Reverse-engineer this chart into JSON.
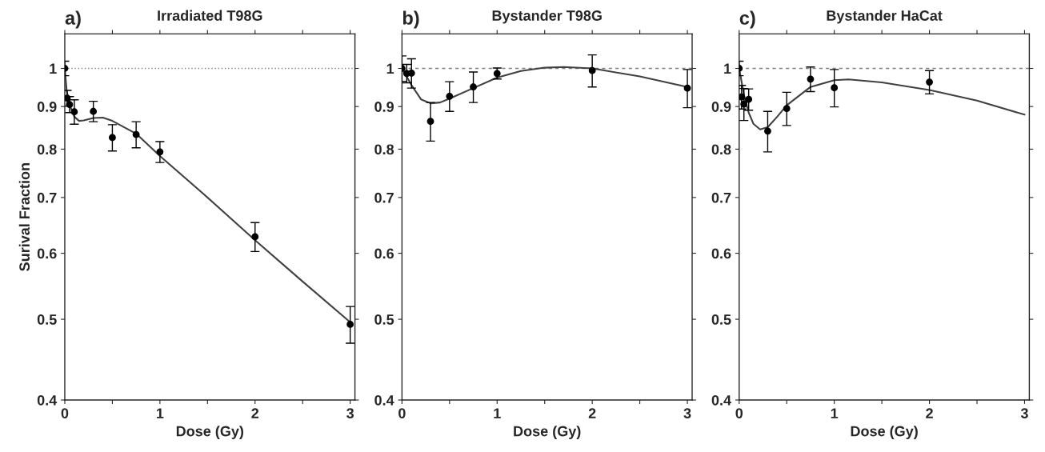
{
  "chart_data": [
    {
      "type": "scatter",
      "title": "Irradiated T98G",
      "annotations": [
        "a)"
      ],
      "xlabel": "Dose (Gy)",
      "ylabel": "Surival Fraction",
      "log": "y",
      "grid": false,
      "xlim": [
        0,
        3.05
      ],
      "ylim": [
        0.4,
        1.1
      ],
      "xticks": [
        0,
        {
          "value": 0.5,
          "label": null
        },
        1,
        {
          "value": 1.5,
          "label": null
        },
        2,
        {
          "value": 2.5,
          "label": null
        },
        3
      ],
      "yticks": [
        0.4,
        0.5,
        0.6,
        0.7,
        0.8,
        0.9,
        1
      ],
      "ref_lines": [
        {
          "axis": "y",
          "value": 1,
          "label": null,
          "color": "#808080",
          "line_style": "dotted"
        }
      ],
      "series": [
        {
          "marker": "circle",
          "color": "#000000",
          "x": [
            0,
            0.025,
            0.05,
            0.1,
            0.3,
            0.5,
            0.75,
            1,
            2,
            3
          ],
          "values": [
            1.0,
            0.921,
            0.905,
            0.887,
            0.888,
            0.826,
            0.833,
            0.794,
            0.628,
            0.493
          ],
          "errors": [
            0.02,
            0.02,
            0.02,
            0.03,
            0.025,
            0.03,
            0.03,
            0.023,
            0.025,
            0.025
          ]
        },
        {
          "type": "line",
          "marker": "none",
          "color": "#404040",
          "x": [
            0,
            0.02,
            0.05,
            0.1,
            0.15,
            0.2,
            0.3,
            0.4,
            0.5,
            0.75,
            1,
            1.5,
            2,
            2.5,
            3
          ],
          "values": [
            1.0,
            0.94,
            0.905,
            0.875,
            0.865,
            0.866,
            0.872,
            0.873,
            0.865,
            0.835,
            0.785,
            0.7,
            0.622,
            0.555,
            0.496
          ]
        }
      ]
    },
    {
      "type": "scatter",
      "title": "Bystander T98G",
      "annotations": [
        "b)"
      ],
      "xlabel": "Dose (Gy)",
      "log": "y",
      "grid": false,
      "xlim": [
        0,
        3.05
      ],
      "ylim": [
        0.4,
        1.1
      ],
      "xticks": [
        0,
        {
          "value": 0.5,
          "label": null
        },
        1,
        {
          "value": 1.5,
          "label": null
        },
        2,
        {
          "value": 2.5,
          "label": null
        },
        3
      ],
      "yticks": [
        0.4,
        0.5,
        0.6,
        0.7,
        0.8,
        0.9,
        1
      ],
      "ref_lines": [
        {
          "axis": "y",
          "value": 1,
          "label": null,
          "color": "#808080",
          "line_style": "dashed"
        }
      ],
      "series": [
        {
          "marker": "circle",
          "color": "#000000",
          "x": [
            0,
            0.05,
            0.1,
            0.3,
            0.5,
            0.75,
            1,
            2,
            3
          ],
          "values": [
            1.0,
            0.986,
            0.987,
            0.864,
            0.926,
            0.95,
            0.986,
            0.994,
            0.947
          ],
          "errors": [
            0.035,
            0.025,
            0.04,
            0.046,
            0.038,
            0.04,
            0.015,
            0.044,
            0.05
          ]
        },
        {
          "type": "line",
          "marker": "none",
          "color": "#404040",
          "x": [
            0,
            0.1,
            0.2,
            0.3,
            0.4,
            0.5,
            0.75,
            1,
            1.25,
            1.5,
            1.7,
            2,
            2.5,
            3
          ],
          "values": [
            1.0,
            0.955,
            0.918,
            0.908,
            0.91,
            0.92,
            0.947,
            0.975,
            0.993,
            1.002,
            1.004,
            1.0,
            0.978,
            0.95
          ]
        }
      ]
    },
    {
      "type": "scatter",
      "title": "Bystander HaCat",
      "annotations": [
        "c)"
      ],
      "xlabel": "Dose (Gy)",
      "log": "y",
      "grid": false,
      "xlim": [
        0,
        3.05
      ],
      "ylim": [
        0.4,
        1.1
      ],
      "xticks": [
        0,
        {
          "value": 0.5,
          "label": null
        },
        1,
        {
          "value": 1.5,
          "label": null
        },
        2,
        {
          "value": 2.5,
          "label": null
        },
        3
      ],
      "yticks": [
        0.4,
        0.5,
        0.6,
        0.7,
        0.8,
        0.9,
        1
      ],
      "ref_lines": [
        {
          "axis": "y",
          "value": 1,
          "label": null,
          "color": "#808080",
          "line_style": "dashed"
        }
      ],
      "series": [
        {
          "marker": "circle",
          "color": "#000000",
          "x": [
            0,
            0.025,
            0.05,
            0.1,
            0.3,
            0.5,
            0.75,
            1,
            2
          ],
          "values": [
            1.0,
            0.924,
            0.906,
            0.918,
            0.841,
            0.895,
            0.971,
            0.948,
            0.963
          ],
          "errors": [
            0.02,
            0.03,
            0.04,
            0.027,
            0.047,
            0.041,
            0.033,
            0.049,
            0.031
          ]
        },
        {
          "type": "line",
          "marker": "none",
          "color": "#404040",
          "x": [
            0,
            0.05,
            0.1,
            0.15,
            0.22,
            0.3,
            0.4,
            0.5,
            0.75,
            1,
            1.15,
            1.5,
            2,
            2.5,
            3
          ],
          "values": [
            1.0,
            0.93,
            0.885,
            0.858,
            0.845,
            0.85,
            0.875,
            0.903,
            0.95,
            0.968,
            0.97,
            0.962,
            0.942,
            0.915,
            0.88
          ]
        }
      ]
    }
  ]
}
